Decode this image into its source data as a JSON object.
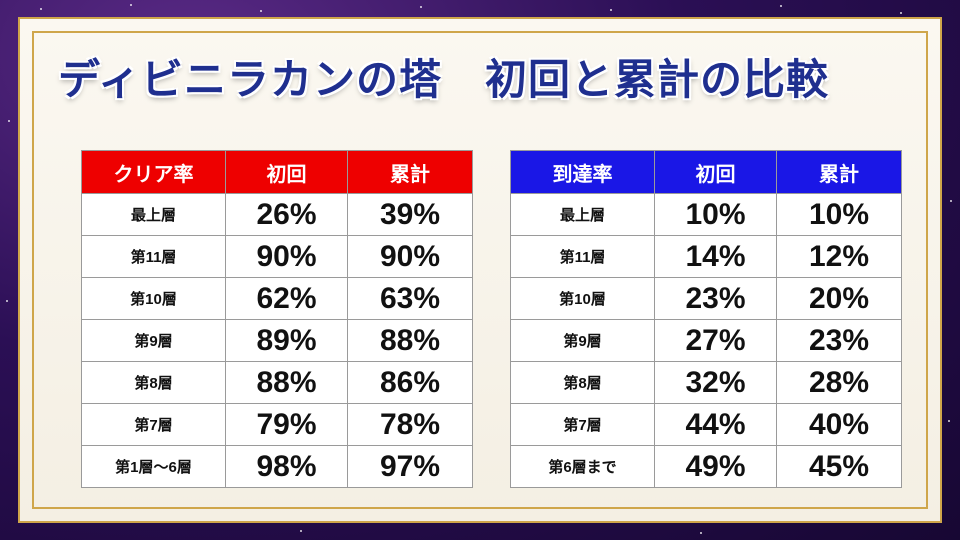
{
  "title": "ディビニラカンの塔　初回と累計の比較",
  "colors": {
    "clear_header": "#ee0000",
    "reach_header": "#1a17e6",
    "title_text": "#1f2f8f",
    "frame_gold": "#cfa64a"
  },
  "clear_table": {
    "headers": [
      "クリア率",
      "初回",
      "累計"
    ],
    "rows": [
      {
        "label": "最上層",
        "first": "26%",
        "total": "39%"
      },
      {
        "label": "第11層",
        "first": "90%",
        "total": "90%"
      },
      {
        "label": "第10層",
        "first": "62%",
        "total": "63%"
      },
      {
        "label": "第9層",
        "first": "89%",
        "total": "88%"
      },
      {
        "label": "第8層",
        "first": "88%",
        "total": "86%"
      },
      {
        "label": "第7層",
        "first": "79%",
        "total": "78%"
      },
      {
        "label": "第1層～6層",
        "first": "98%",
        "total": "97%"
      }
    ]
  },
  "reach_table": {
    "headers": [
      "到達率",
      "初回",
      "累計"
    ],
    "rows": [
      {
        "label": "最上層",
        "first": "10%",
        "total": "10%"
      },
      {
        "label": "第11層",
        "first": "14%",
        "total": "12%"
      },
      {
        "label": "第10層",
        "first": "23%",
        "total": "20%"
      },
      {
        "label": "第9層",
        "first": "27%",
        "total": "23%"
      },
      {
        "label": "第8層",
        "first": "32%",
        "total": "28%"
      },
      {
        "label": "第7層",
        "first": "44%",
        "total": "40%"
      },
      {
        "label": "第6層まで",
        "first": "49%",
        "total": "45%"
      }
    ]
  }
}
